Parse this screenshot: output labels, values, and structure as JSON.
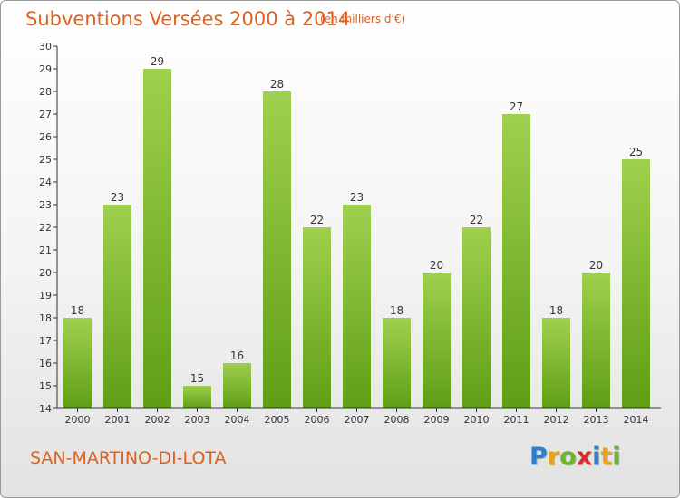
{
  "header": {
    "title": "Subventions Versées 2000 à 2014",
    "unit": "(en milliers d'€)"
  },
  "footer": {
    "location": "SAN-MARTINO-DI-LOTA",
    "brand": {
      "letters": [
        {
          "char": "P",
          "color": "#2f7fd0"
        },
        {
          "char": "r",
          "color": "#e8a317"
        },
        {
          "char": "o",
          "color": "#6fb22c"
        },
        {
          "char": "x",
          "color": "#d92b2b"
        },
        {
          "char": "i",
          "color": "#2f7fd0"
        },
        {
          "char": "t",
          "color": "#e8a317"
        },
        {
          "char": "i",
          "color": "#6fb22c"
        }
      ]
    }
  },
  "chart_data": {
    "type": "bar",
    "title": "Subventions Versées 2000 à 2014",
    "subtitle": "(en milliers d'€)",
    "xlabel": "",
    "ylabel": "",
    "categories": [
      "2000",
      "2001",
      "2002",
      "2003",
      "2004",
      "2005",
      "2006",
      "2007",
      "2008",
      "2009",
      "2010",
      "2011",
      "2012",
      "2013",
      "2014"
    ],
    "values": [
      18,
      23,
      29,
      15,
      16,
      28,
      22,
      23,
      18,
      20,
      22,
      27,
      18,
      20,
      25
    ],
    "ylim": [
      14,
      30
    ],
    "yticks": [
      14,
      15,
      16,
      17,
      18,
      19,
      20,
      21,
      22,
      23,
      24,
      25,
      26,
      27,
      28,
      29,
      30
    ],
    "grid": false,
    "legend": "none",
    "colors": {
      "bar_top": "#9fd04f",
      "bar_bottom": "#5f9e14",
      "text": "#e0611d",
      "axis": "#333333"
    }
  }
}
